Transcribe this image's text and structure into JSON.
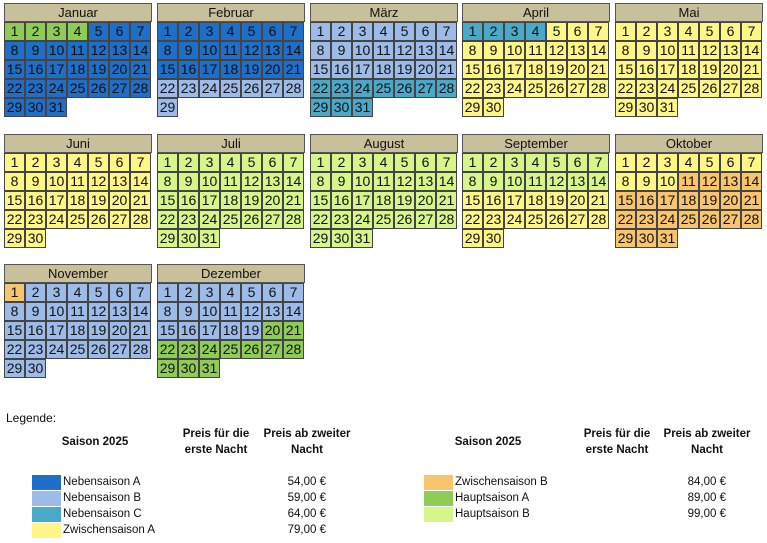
{
  "season_colors": {
    "nebensaison_a": "#1f6ec7",
    "nebensaison_b": "#9dbbe8",
    "nebensaison_c": "#4aa8c8",
    "zwischensaison_a": "#fef686",
    "zwischensaison_b": "#f9c46e",
    "hauptsaison_a": "#8fcc57",
    "hauptsaison_b": "#d6f68c"
  },
  "months": [
    {
      "name": "Januar",
      "days": 31,
      "seasons": [
        [
          "hauptsaison_a",
          1,
          4
        ],
        [
          "nebensaison_a",
          5,
          31
        ]
      ]
    },
    {
      "name": "Februar",
      "days": 29,
      "seasons": [
        [
          "nebensaison_a",
          1,
          21
        ],
        [
          "nebensaison_b",
          22,
          29
        ]
      ]
    },
    {
      "name": "März",
      "days": 31,
      "seasons": [
        [
          "nebensaison_b",
          1,
          21
        ],
        [
          "nebensaison_c",
          22,
          31
        ]
      ]
    },
    {
      "name": "April",
      "days": 30,
      "seasons": [
        [
          "nebensaison_c",
          1,
          4
        ],
        [
          "zwischensaison_a",
          5,
          30
        ]
      ]
    },
    {
      "name": "Mai",
      "days": 31,
      "seasons": [
        [
          "zwischensaison_a",
          1,
          31
        ]
      ]
    },
    {
      "name": "Juni",
      "days": 30,
      "seasons": [
        [
          "zwischensaison_a",
          1,
          30
        ]
      ]
    },
    {
      "name": "Juli",
      "days": 31,
      "seasons": [
        [
          "hauptsaison_b",
          1,
          31
        ]
      ]
    },
    {
      "name": "August",
      "days": 31,
      "seasons": [
        [
          "hauptsaison_b",
          1,
          31
        ]
      ]
    },
    {
      "name": "September",
      "days": 30,
      "seasons": [
        [
          "hauptsaison_b",
          1,
          14
        ],
        [
          "zwischensaison_a",
          15,
          30
        ]
      ]
    },
    {
      "name": "Oktober",
      "days": 31,
      "seasons": [
        [
          "zwischensaison_a",
          1,
          10
        ],
        [
          "zwischensaison_b",
          11,
          31
        ]
      ]
    },
    {
      "name": "November",
      "days": 30,
      "seasons": [
        [
          "zwischensaison_b",
          1,
          1
        ],
        [
          "nebensaison_b",
          2,
          30
        ]
      ]
    },
    {
      "name": "Dezember",
      "days": 31,
      "seasons": [
        [
          "nebensaison_b",
          1,
          19
        ],
        [
          "hauptsaison_a",
          20,
          31
        ]
      ]
    }
  ],
  "legend": {
    "title": "Legende:",
    "season_header": "Saison 2025",
    "first_night_header": "Preis für die erste Nacht",
    "next_night_header": "Preis ab zweiter Nacht",
    "left": [
      {
        "label": "Nebensaison A",
        "color": "#1f6ec7",
        "price": "54,00 €"
      },
      {
        "label": "Nebensaison B",
        "color": "#9dbbe8",
        "price": "59,00 €"
      },
      {
        "label": "Nebensaison C",
        "color": "#4aa8c8",
        "price": "64,00 €"
      },
      {
        "label": "Zwischensaison A",
        "color": "#fef686",
        "price": "79,00 €"
      }
    ],
    "right": [
      {
        "label": "Zwischensaison B",
        "color": "#f9c46e",
        "price": "84,00 €"
      },
      {
        "label": "Hauptsaison A",
        "color": "#8fcc57",
        "price": "89,00 €"
      },
      {
        "label": "Hauptsaison B",
        "color": "#d6f68c",
        "price": "99,00 €"
      }
    ]
  }
}
